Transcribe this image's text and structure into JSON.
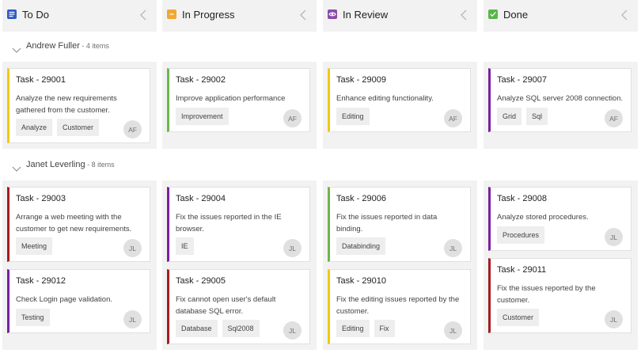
{
  "columns": [
    {
      "title": "To Do",
      "icon": "list-icon",
      "color": "#2e5bc7"
    },
    {
      "title": "In Progress",
      "icon": "progress-icon",
      "color": "#f0a830"
    },
    {
      "title": "In Review",
      "icon": "eye-icon",
      "color": "#8b4ba8"
    },
    {
      "title": "Done",
      "icon": "check-icon",
      "color": "#5ab54a"
    }
  ],
  "swimlanes": [
    {
      "name": "Andrew Fuller",
      "count": " - 4 items",
      "cells": [
        [
          {
            "title": "Task - 29001",
            "desc": "Analyze the new requirements gathered from the customer.",
            "tags": [
              "Analyze",
              "Customer"
            ],
            "avatar": "AF",
            "color": "#f2c811"
          }
        ],
        [
          {
            "title": "Task - 29002",
            "desc": "Improve application performance",
            "tags": [
              "Improvement"
            ],
            "avatar": "AF",
            "color": "#6ab84a"
          }
        ],
        [
          {
            "title": "Task - 29009",
            "desc": "Enhance editing functionality.",
            "tags": [
              "Editing"
            ],
            "avatar": "AF",
            "color": "#f2c811"
          }
        ],
        [
          {
            "title": "Task - 29007",
            "desc": "Analyze SQL server 2008 connection.",
            "tags": [
              "Grid",
              "Sql"
            ],
            "avatar": "AF",
            "color": "#7b1fa2"
          }
        ]
      ]
    },
    {
      "name": "Janet Leverling",
      "count": " - 8 items",
      "cells": [
        [
          {
            "title": "Task - 29003",
            "desc": "Arrange a web meeting with the customer to get new requirements.",
            "tags": [
              "Meeting"
            ],
            "avatar": "JL",
            "color": "#a31d22"
          },
          {
            "title": "Task - 29012",
            "desc": "Check Login page validation.",
            "tags": [
              "Testing"
            ],
            "avatar": "JL",
            "color": "#7b1fa2"
          }
        ],
        [
          {
            "title": "Task - 29004",
            "desc": "Fix the issues reported in the IE browser.",
            "tags": [
              "IE"
            ],
            "avatar": "JL",
            "color": "#7b1fa2"
          },
          {
            "title": "Task - 29005",
            "desc": "Fix cannot open user's default database SQL error.",
            "tags": [
              "Database",
              "Sql2008"
            ],
            "avatar": "JL",
            "color": "#a31d22"
          }
        ],
        [
          {
            "title": "Task - 29006",
            "desc": "Fix the issues reported in data binding.",
            "tags": [
              "Databinding"
            ],
            "avatar": "JL",
            "color": "#6ab84a"
          },
          {
            "title": "Task - 29010",
            "desc": "Fix the editing issues reported by the customer.",
            "tags": [
              "Editing",
              "Fix"
            ],
            "avatar": "JL",
            "color": "#f2c811"
          }
        ],
        [
          {
            "title": "Task - 29008",
            "desc": "Analyze stored procedures.",
            "tags": [
              "Procedures"
            ],
            "avatar": "JL",
            "color": "#7b1fa2"
          },
          {
            "title": "Task - 29011",
            "desc": "Fix the issues reported by the customer.",
            "tags": [
              "Customer"
            ],
            "avatar": "JL",
            "color": "#a31d22"
          }
        ]
      ]
    }
  ]
}
